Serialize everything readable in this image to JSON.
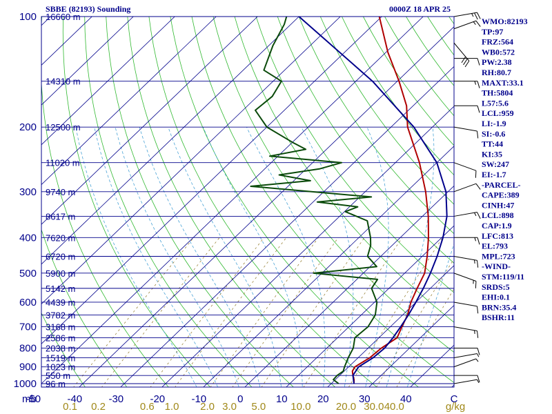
{
  "header": {
    "station_title": "SBBE (82193) Sounding",
    "time_title": "0000Z 18 APR 25"
  },
  "chart_data": {
    "type": "line",
    "title": "SBBE (82193) Sounding",
    "subtitle": "0000Z 18 APR 25",
    "xlabel": "",
    "ylabel": "",
    "xlim": [
      -50,
      50
    ],
    "ylim": [
      1000,
      100
    ],
    "y_scale": "log",
    "grid": true,
    "y_unit_label": "mb",
    "pressure_ticks": [
      100,
      200,
      300,
      400,
      500,
      600,
      700,
      800,
      900,
      1000
    ],
    "temperature_ticks": [
      -50,
      -40,
      -30,
      -20,
      -10,
      0,
      10,
      20,
      30,
      40
    ],
    "temperature_zero_label": "C",
    "height_labels": [
      {
        "p": 100,
        "text": "16660 m"
      },
      {
        "p": 150,
        "text": "14310 m"
      },
      {
        "p": 200,
        "text": "12500 m"
      },
      {
        "p": 250,
        "text": "11020 m"
      },
      {
        "p": 300,
        "text": "9740 m"
      },
      {
        "p": 350,
        "text": "8617 m"
      },
      {
        "p": 400,
        "text": "7620 m"
      },
      {
        "p": 450,
        "text": "6720 m"
      },
      {
        "p": 500,
        "text": "5900 m"
      },
      {
        "p": 550,
        "text": "5142 m"
      },
      {
        "p": 600,
        "text": "4439 m"
      },
      {
        "p": 650,
        "text": "3782 m"
      },
      {
        "p": 700,
        "text": "3168 m"
      },
      {
        "p": 750,
        "text": "2586 m"
      },
      {
        "p": 800,
        "text": "2038 m"
      },
      {
        "p": 850,
        "text": "1519 m"
      },
      {
        "p": 900,
        "text": "1023 m"
      },
      {
        "p": 950,
        "text": "550 m"
      },
      {
        "p": 1000,
        "text": "96 m"
      }
    ],
    "mixing_ratio_labels": [
      "0.1",
      "0.2",
      "0.6",
      "1.0",
      "2.0",
      "3.0",
      "5.0",
      "10.0",
      "20.0",
      "30.0",
      "40.0"
    ],
    "mixing_ratio_unit": "g/kg",
    "series": [
      {
        "role": "temperature",
        "color": "#b00000",
        "points": [
          [
            1000,
            25.5
          ],
          [
            975,
            24.5
          ],
          [
            950,
            23.2
          ],
          [
            925,
            22.0
          ],
          [
            900,
            21.5
          ],
          [
            850,
            22.8
          ],
          [
            800,
            23.2
          ],
          [
            750,
            24.4
          ],
          [
            700,
            22.8
          ],
          [
            650,
            21.2
          ],
          [
            600,
            18.8
          ],
          [
            550,
            16.8
          ],
          [
            500,
            14.8
          ],
          [
            450,
            11.2
          ],
          [
            400,
            6.8
          ],
          [
            350,
            1.4
          ],
          [
            300,
            -5.4
          ],
          [
            250,
            -14.2
          ],
          [
            200,
            -26
          ],
          [
            175,
            -31.6
          ],
          [
            150,
            -39.6
          ],
          [
            125,
            -49.6
          ],
          [
            100,
            -60.6
          ]
        ]
      },
      {
        "role": "dewpoint",
        "color": "#0a4a0a",
        "points": [
          [
            1000,
            21.8
          ],
          [
            975,
            19.5
          ],
          [
            950,
            19.4
          ],
          [
            925,
            19.8
          ],
          [
            900,
            19.0
          ],
          [
            850,
            17.6
          ],
          [
            800,
            16.4
          ],
          [
            750,
            14.2
          ],
          [
            700,
            14.6
          ],
          [
            650,
            13.4
          ],
          [
            600,
            10.6
          ],
          [
            550,
            5.8
          ],
          [
            520,
            5.0
          ],
          [
            500,
            -12.0
          ],
          [
            480,
            1.6
          ],
          [
            450,
            -3.2
          ],
          [
            420,
            -5.2
          ],
          [
            400,
            -7.2
          ],
          [
            360,
            -12.2
          ],
          [
            340,
            -19.8
          ],
          [
            330,
            -18.0
          ],
          [
            320,
            -29.0
          ],
          [
            310,
            -17.2
          ],
          [
            290,
            -49.0
          ],
          [
            280,
            -36.0
          ],
          [
            270,
            -45.0
          ],
          [
            260,
            -36.8
          ],
          [
            250,
            -33.0
          ],
          [
            240,
            -52.0
          ],
          [
            230,
            -45.0
          ],
          [
            220,
            -50.0
          ],
          [
            200,
            -60.0
          ],
          [
            180,
            -67.0
          ],
          [
            165,
            -66.4
          ],
          [
            150,
            -68.0
          ],
          [
            140,
            -75.0
          ],
          [
            120,
            -79.0
          ],
          [
            105,
            -81.6
          ],
          [
            100,
            -83.0
          ]
        ]
      },
      {
        "role": "parcel",
        "color": "#00008b",
        "points": [
          [
            1000,
            25.5
          ],
          [
            950,
            23.2
          ],
          [
            900,
            22.4
          ],
          [
            850,
            23.6
          ],
          [
            800,
            24.0
          ],
          [
            750,
            23.4
          ],
          [
            700,
            22.5
          ],
          [
            650,
            21.4
          ],
          [
            600,
            20.0
          ],
          [
            550,
            18.3
          ],
          [
            500,
            16.2
          ],
          [
            450,
            13.6
          ],
          [
            400,
            10.3
          ],
          [
            350,
            5.9
          ],
          [
            300,
            -0.5
          ],
          [
            250,
            -10.0
          ],
          [
            200,
            -24.5
          ],
          [
            150,
            -46.0
          ],
          [
            100,
            -80.0
          ]
        ]
      }
    ],
    "winds": [
      {
        "p": 100,
        "dir": 80,
        "spd": 25
      },
      {
        "p": 108,
        "dir": 70,
        "spd": 15
      },
      {
        "p": 118,
        "dir": 140,
        "spd": 30
      },
      {
        "p": 130,
        "dir": 90,
        "spd": 10
      },
      {
        "p": 150,
        "dir": 90,
        "spd": 15
      },
      {
        "p": 175,
        "dir": 90,
        "spd": 10
      },
      {
        "p": 200,
        "dir": 100,
        "spd": 10
      },
      {
        "p": 250,
        "dir": 110,
        "spd": 10
      },
      {
        "p": 300,
        "dir": 70,
        "spd": 10
      },
      {
        "p": 350,
        "dir": 80,
        "spd": 15
      },
      {
        "p": 400,
        "dir": 90,
        "spd": 15
      },
      {
        "p": 450,
        "dir": 100,
        "spd": 15
      },
      {
        "p": 500,
        "dir": 110,
        "spd": 15
      },
      {
        "p": 600,
        "dir": 100,
        "spd": 10
      },
      {
        "p": 700,
        "dir": 100,
        "spd": 15
      },
      {
        "p": 800,
        "dir": 90,
        "spd": 10
      },
      {
        "p": 850,
        "dir": 80,
        "spd": 5
      },
      {
        "p": 900,
        "dir": 70,
        "spd": 5
      },
      {
        "p": 950,
        "dir": 90,
        "spd": 10
      },
      {
        "p": 1000,
        "dir": 80,
        "spd": 5
      }
    ]
  },
  "indices": [
    "WMO:82193",
    "TP:97",
    "FRZ:564",
    "WB0:572",
    "PW:2.38",
    "RH:80.7",
    "MAXT:33.1",
    "TH:5804",
    "L57:5.6",
    "LCL:959",
    "LI:-1.9",
    "SI:-0.6",
    "TT:44",
    "KI:35",
    "SW:247",
    "EI:-1.7",
    "-PARCEL-",
    "CAPE:389",
    "CINH:47",
    "LCL:898",
    "CAP:1.9",
    "LFC:813",
    "EL:793",
    "MPL:723",
    "-WIND-",
    "STM:119/11",
    "SRDS:5",
    "EHI:0.1",
    "BRN:35.4",
    "BSHR:11"
  ],
  "colors": {
    "frame": "#00008b",
    "isobar": "#00008b",
    "isotherm": "#00008b",
    "dry_adiabat": "#2fb82f",
    "moist_adiabat": "#4aa3d6",
    "mixing_ratio": "#8c7420",
    "temperature": "#b00000",
    "dewpoint": "#0a4a0a",
    "parcel": "#00008b",
    "wind": "#000000"
  }
}
